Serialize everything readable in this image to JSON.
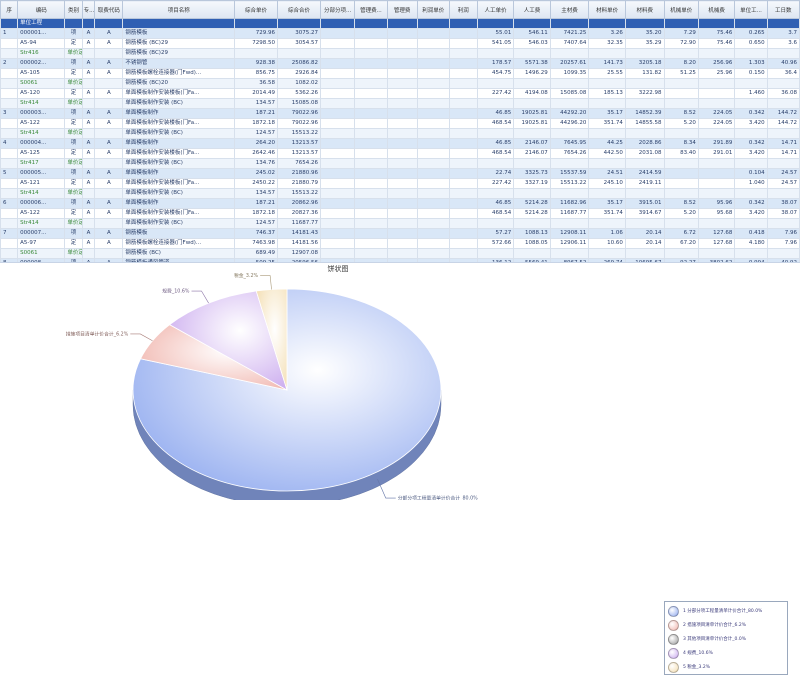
{
  "grid": {
    "columns": [
      "序",
      "编码",
      "类别",
      "专...",
      "取费代码",
      "项目名称",
      "综合单价",
      "综合合价",
      "分部分项...",
      "管理费...",
      "管理费",
      "利润单价",
      "利润",
      "人工单价",
      "人工费",
      "主材费",
      "材料单价",
      "材料费",
      "机械单价",
      "机械费",
      "单位工...",
      "工日数"
    ],
    "rows": [
      {
        "type": "sel",
        "cells": [
          "",
          "单位工程",
          "",
          "",
          "",
          "",
          "",
          "",
          "",
          "",
          "",
          "",
          "",
          "",
          "",
          "",
          "",
          "",
          "",
          "",
          "",
          ""
        ]
      },
      {
        "type": "group",
        "cells": [
          "1",
          "000001...",
          "项",
          "A",
          "A",
          "钢筋模板",
          "729.96",
          "3075.27",
          "",
          "",
          "",
          "",
          "",
          "55.01",
          "546.11",
          "7421.25",
          "3.26",
          "35.20",
          "7.29",
          "75.46",
          "0.265",
          "3.7"
        ]
      },
      {
        "type": "main",
        "cells": [
          "",
          "A5-94",
          "定",
          "A",
          "A",
          "钢筋模板 (BC)29",
          "7298.50",
          "3054.57",
          "",
          "",
          "",
          "",
          "",
          "541.05",
          "546.03",
          "7407.64",
          "32.35",
          "35.29",
          "72.90",
          "75.46",
          "0.650",
          "3.6"
        ]
      },
      {
        "type": "sub",
        "cells": [
          "",
          "Str416",
          "单价定",
          "",
          "",
          "钢筋模板 (BC)29",
          "",
          "",
          "",
          "",
          "",
          "",
          "",
          "",
          "",
          "",
          "",
          "",
          "",
          "",
          "",
          ""
        ]
      },
      {
        "type": "group",
        "cells": [
          "2",
          "000002...",
          "项",
          "A",
          "A",
          "不锈钢管",
          "928.38",
          "25086.82",
          "",
          "",
          "",
          "",
          "",
          "178.57",
          "5571.38",
          "20257.61",
          "141.73",
          "3205.18",
          "8.20",
          "256.96",
          "1.303",
          "40.96"
        ]
      },
      {
        "type": "main",
        "cells": [
          "",
          "A5-105",
          "定",
          "A",
          "A",
          "钢筋模板螺栓连接器(门Fwd)...",
          "856.75",
          "2926.84",
          "",
          "",
          "",
          "",
          "",
          "454.75",
          "1496.29",
          "1099.35",
          "25.55",
          "131.82",
          "51.25",
          "25.96",
          "0.150",
          "36.4"
        ]
      },
      {
        "type": "sub",
        "cells": [
          "",
          "S0061",
          "单价定",
          "",
          "",
          "钢筋模板 (BC)20",
          "36.58",
          "1082.02",
          "",
          "",
          "",
          "",
          "",
          "",
          "",
          "",
          "",
          "",
          "",
          "",
          "",
          ""
        ]
      },
      {
        "type": "main",
        "cells": [
          "",
          "A5-120",
          "定",
          "A",
          "A",
          "单面模板制作安装楼板(门Fa...",
          "2014.49",
          "5362.26",
          "",
          "",
          "",
          "",
          "",
          "227.42",
          "4194.08",
          "15085.08",
          "185.13",
          "3222.98",
          "",
          "",
          "1.460",
          "36.08"
        ]
      },
      {
        "type": "sub",
        "cells": [
          "",
          "Str414",
          "单价定",
          "",
          "",
          "单面模板制作安装 (BC)",
          "134.57",
          "15085.08",
          "",
          "",
          "",
          "",
          "",
          "",
          "",
          "",
          "",
          "",
          "",
          "",
          "",
          ""
        ]
      },
      {
        "type": "group",
        "cells": [
          "3",
          "000003...",
          "项",
          "A",
          "A",
          "单面模板制作",
          "187.21",
          "79022.96",
          "",
          "",
          "",
          "",
          "",
          "46.85",
          "19025.81",
          "44292.20",
          "35.17",
          "14852.39",
          "8.52",
          "224.05",
          "0.342",
          "144.72"
        ]
      },
      {
        "type": "main",
        "cells": [
          "",
          "A5-122",
          "定",
          "A",
          "A",
          "单面模板制作安装楼板(门Fa...",
          "1872.18",
          "79022.96",
          "",
          "",
          "",
          "",
          "",
          "468.54",
          "19025.81",
          "44296.20",
          "351.74",
          "14855.58",
          "5.20",
          "224.05",
          "3.420",
          "144.72"
        ]
      },
      {
        "type": "sub",
        "cells": [
          "",
          "Str414",
          "单价定",
          "",
          "",
          "单面模板制作安装 (BC)",
          "124.57",
          "15513.22",
          "",
          "",
          "",
          "",
          "",
          "",
          "",
          "",
          "",
          "",
          "",
          "",
          "",
          ""
        ]
      },
      {
        "type": "group",
        "cells": [
          "4",
          "000004...",
          "项",
          "A",
          "A",
          "单面模板制作",
          "264.20",
          "13213.57",
          "",
          "",
          "",
          "",
          "",
          "46.85",
          "2146.07",
          "7645.95",
          "44.25",
          "2028.86",
          "8.34",
          "291.89",
          "0.342",
          "14.71"
        ]
      },
      {
        "type": "main",
        "cells": [
          "",
          "A5-125",
          "定",
          "A",
          "A",
          "单面模板制作安装楼板(门Fa...",
          "2642.46",
          "13213.57",
          "",
          "",
          "",
          "",
          "",
          "468.54",
          "2146.07",
          "7654.26",
          "442.50",
          "2031.08",
          "83.40",
          "291.01",
          "3.420",
          "14.71"
        ]
      },
      {
        "type": "sub",
        "cells": [
          "",
          "Str417",
          "单价定",
          "",
          "",
          "单面模板制作安装 (BC)",
          "134.76",
          "7654.26",
          "",
          "",
          "",
          "",
          "",
          "",
          "",
          "",
          "",
          "",
          "",
          "",
          "",
          ""
        ]
      },
      {
        "type": "group",
        "cells": [
          "5",
          "000005...",
          "项",
          "A",
          "A",
          "单面模板制作",
          "245.02",
          "21880.96",
          "",
          "",
          "",
          "",
          "",
          "22.74",
          "3325.73",
          "15537.59",
          "24.51",
          "2414.59",
          "",
          "",
          "0.104",
          "24.57"
        ]
      },
      {
        "type": "main",
        "cells": [
          "",
          "A5-121",
          "定",
          "A",
          "A",
          "单面模板制作安装楼板(门Fa...",
          "2450.22",
          "21880.79",
          "",
          "",
          "",
          "",
          "",
          "227.42",
          "3327.19",
          "15513.22",
          "245.10",
          "2419.11",
          "",
          "",
          "1.040",
          "24.57"
        ]
      },
      {
        "type": "sub",
        "cells": [
          "",
          "Str414",
          "单价定",
          "",
          "",
          "单面模板制作安装 (BC)",
          "134.57",
          "15513.22",
          "",
          "",
          "",
          "",
          "",
          "",
          "",
          "",
          "",
          "",
          "",
          "",
          "",
          ""
        ]
      },
      {
        "type": "group",
        "cells": [
          "6",
          "000006...",
          "项",
          "A",
          "A",
          "单面模板制作",
          "187.21",
          "20862.96",
          "",
          "",
          "",
          "",
          "",
          "46.85",
          "5214.28",
          "11682.96",
          "35.17",
          "3915.01",
          "8.52",
          "95.96",
          "0.342",
          "38.07"
        ]
      },
      {
        "type": "main",
        "cells": [
          "",
          "A5-122",
          "定",
          "A",
          "A",
          "单面模板制作安装楼板(门Fa...",
          "1872.18",
          "20827.36",
          "",
          "",
          "",
          "",
          "",
          "468.54",
          "5214.28",
          "11687.77",
          "351.74",
          "3914.67",
          "5.20",
          "95.68",
          "3.420",
          "38.07"
        ]
      },
      {
        "type": "sub",
        "cells": [
          "",
          "Str414",
          "单价定",
          "",
          "",
          "单面模板制作安装 (BC)",
          "124.57",
          "11687.77",
          "",
          "",
          "",
          "",
          "",
          "",
          "",
          "",
          "",
          "",
          "",
          "",
          "",
          ""
        ]
      },
      {
        "type": "group",
        "cells": [
          "7",
          "000007...",
          "项",
          "A",
          "A",
          "钢筋模板",
          "746.37",
          "14181.43",
          "",
          "",
          "",
          "",
          "",
          "57.27",
          "1088.13",
          "12908.11",
          "1.06",
          "20.14",
          "6.72",
          "127.68",
          "0.418",
          "7.96"
        ]
      },
      {
        "type": "main",
        "cells": [
          "",
          "A5-97",
          "定",
          "A",
          "A",
          "钢筋模板螺栓连接器(门Fwd)...",
          "7463.98",
          "14181.56",
          "",
          "",
          "",
          "",
          "",
          "572.66",
          "1088.05",
          "12906.11",
          "10.60",
          "20.14",
          "67.20",
          "127.68",
          "4.180",
          "7.96"
        ]
      },
      {
        "type": "sub",
        "cells": [
          "",
          "S0061",
          "单价定",
          "",
          "",
          "钢筋模板 (BC)",
          "689.49",
          "12907.08",
          "",
          "",
          "",
          "",
          "",
          "",
          "",
          "",
          "",
          "",
          "",
          "",
          "",
          ""
        ]
      },
      {
        "type": "group",
        "cells": [
          "8",
          "000008...",
          "项",
          "A",
          "A",
          "钢筋模板通风管道",
          "509.25",
          "20596.56",
          "",
          "",
          "",
          "",
          "",
          "136.12",
          "5569.41",
          "8967.52",
          "269.74",
          "10695.67",
          "92.27",
          "3802.62",
          "0.994",
          "40.92"
        ]
      },
      {
        "type": "main",
        "cells": [
          "",
          "A5-121",
          "定",
          "A",
          "A",
          "钢筋模板通风管道 F=(3m以...",
          "5092.50",
          "20914.20",
          "",
          "",
          "",
          "",
          "",
          "1361.25",
          "5559.82",
          "8975.92",
          "2697.54",
          "11025.92",
          "922.70",
          "3802.61",
          "9.940",
          "40.92"
        ]
      },
      {
        "type": "sub",
        "cells": [
          "",
          "S0061",
          "单价定",
          "",
          "",
          "钢筋模板 F.2",
          "5.70",
          "351.10",
          "",
          "",
          "",
          "",
          "",
          "",
          "",
          "",
          "",
          "",
          "",
          "",
          "",
          ""
        ]
      },
      {
        "type": "group",
        "cells": [
          "9",
          "000009...",
          "项",
          "A",
          "A",
          "钢筋模板通风管道",
          "509.25",
          "4801.72",
          "",
          "",
          "",
          "",
          "",
          "136.12",
          "1314.92",
          "2124.71",
          "269.74",
          "2607.17",
          "92.27",
          "891.68",
          "0.994",
          "9.6"
        ]
      },
      {
        "type": "main",
        "cells": [
          "",
          "A5-121",
          "定",
          "A",
          "A",
          "钢筋模板通风管道 F=(3m以...",
          "5092.50",
          "4801.52",
          "",
          "",
          "",
          "",
          "",
          "1361.25",
          "1314.90",
          "2133.51",
          "2697.54",
          "2616.52",
          "922.70",
          "891.49",
          "9.940",
          "9.6"
        ]
      },
      {
        "type": "sub",
        "cells": [
          "",
          "S0061",
          "单价定",
          "",
          "",
          "钢筋模板 F.2",
          "5.70",
          "55.71",
          "",
          "",
          "",
          "",
          "",
          "",
          "",
          "",
          "",
          "",
          "",
          "",
          "",
          ""
        ]
      }
    ]
  },
  "chart_data": {
    "type": "pie",
    "title": "饼状图",
    "slices": [
      {
        "name": "1 分部分项工程量清单计价合计_80.0%",
        "value": 80.0,
        "color": "#8fa9ef",
        "label": "分部分项工程量清单计价合计_80.0%"
      },
      {
        "name": "2 措施项目清单计价合计_6.2%",
        "value": 6.2,
        "color": "#f0b3ab",
        "label": "措施项目清单计价合计_6.2%"
      },
      {
        "name": "3 其他项目清单计价合计_0.0%",
        "value": 0.0,
        "color": "#9a9a9a",
        "label": ""
      },
      {
        "name": "4 规费_10.6%",
        "value": 10.6,
        "color": "#c9a8ee",
        "label": "规费_10.6%"
      },
      {
        "name": "5 税金_3.2%",
        "value": 3.2,
        "color": "#f3ddb0",
        "label": "税金_3.2%"
      }
    ],
    "legend_position": "right"
  }
}
